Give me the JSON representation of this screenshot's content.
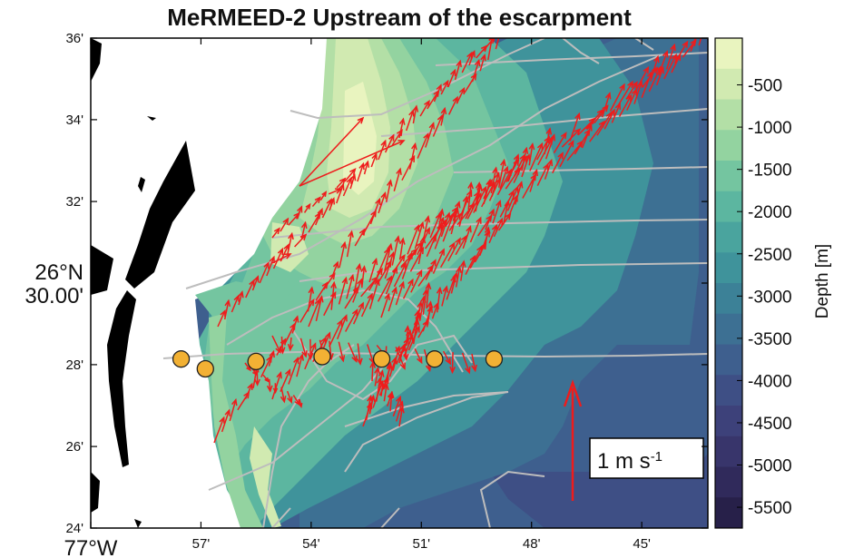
{
  "title": "MeRMEED-2 Upstream of the escarpment",
  "map": {
    "x_ticks": [
      {
        "lon": -77,
        "label": "77°W"
      },
      {
        "lon": -76.95,
        "label": "57'"
      },
      {
        "lon": -76.9,
        "label": "54'"
      },
      {
        "lon": -76.85,
        "label": "51'"
      },
      {
        "lon": -76.8,
        "label": "48'"
      },
      {
        "lon": -76.75,
        "label": "45'"
      }
    ],
    "y_ticks": [
      {
        "lat": 26.6,
        "label": "36'"
      },
      {
        "lat": 26.5667,
        "label": "34'"
      },
      {
        "lat": 26.5333,
        "label": "32'"
      },
      {
        "lat": 26.5,
        "label": "26°N"
      },
      {
        "lat": 26.5,
        "label": "30.00'"
      },
      {
        "lat": 26.4667,
        "label": "28'"
      },
      {
        "lat": 26.4333,
        "label": "26'"
      },
      {
        "lat": 26.4,
        "label": "24'"
      }
    ],
    "lon_range": [
      -77,
      -76.72
    ],
    "lat_range": [
      26.4,
      26.6
    ],
    "moorings": [
      {
        "lon": -76.959,
        "lat": 26.469
      },
      {
        "lon": -76.948,
        "lat": 26.465
      },
      {
        "lon": -76.925,
        "lat": 26.468
      },
      {
        "lon": -76.895,
        "lat": 26.47
      },
      {
        "lon": -76.868,
        "lat": 26.469
      },
      {
        "lon": -76.844,
        "lat": 26.469
      },
      {
        "lon": -76.817,
        "lat": 26.469
      }
    ],
    "scale_arrow_label": "1 m s",
    "scale_arrow_exp": "-1",
    "colors": {
      "arrow": "#ee1c1c",
      "track": "#bdbdbd",
      "mooring": "#f2b134",
      "land": "#000000"
    }
  },
  "colorbar": {
    "label": "Depth [m]",
    "ticks": [
      "-500",
      "-1000",
      "-1500",
      "-2000",
      "-2500",
      "-3000",
      "-3500",
      "-4000",
      "-4500",
      "-5000",
      "-5500"
    ],
    "colors": [
      "#e9f4bf",
      "#d1eab1",
      "#b3dfa6",
      "#93d3a0",
      "#74c5a0",
      "#5cb6a0",
      "#4aa49e",
      "#3f939b",
      "#3c8197",
      "#3d7093",
      "#3e5f8e",
      "#3e4f85",
      "#3d417a",
      "#38356b",
      "#302a5b",
      "#272049"
    ]
  }
}
